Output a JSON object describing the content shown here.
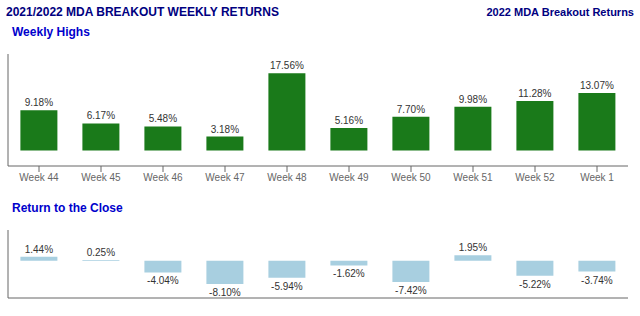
{
  "title": "2021/2022 MDA BREAKOUT WEEKLY RETURNS",
  "subtitle": "2022 MDA Breakout Returns",
  "chart_data": [
    {
      "type": "bar",
      "title": "Weekly Highs",
      "categories": [
        "Week 44",
        "Week 45",
        "Week 46",
        "Week 47",
        "Week 48",
        "Week 49",
        "Week 50",
        "Week 51",
        "Week 52",
        "Week 1"
      ],
      "values": [
        9.18,
        6.17,
        5.48,
        3.18,
        17.56,
        5.16,
        7.7,
        9.98,
        11.28,
        13.07
      ],
      "value_labels": [
        "9.18%",
        "6.17%",
        "5.48%",
        "3.18%",
        "17.56%",
        "5.16%",
        "7.70%",
        "9.98%",
        "11.28%",
        "13.07%"
      ],
      "color": "#1a7a1a",
      "ylim": [
        -3.5,
        21.95
      ],
      "grid": false,
      "data_labels": true,
      "tick_labels": "x"
    },
    {
      "type": "bar",
      "title": "Return to the Close",
      "categories": [
        "Week 44",
        "Week 45",
        "Week 46",
        "Week 47",
        "Week 48",
        "Week 49",
        "Week 50",
        "Week 51",
        "Week 52",
        "Week 1"
      ],
      "values": [
        1.44,
        0.25,
        -4.04,
        -8.1,
        -5.94,
        -1.62,
        -7.42,
        1.95,
        -5.22,
        -3.74
      ],
      "value_labels": [
        "1.44%",
        "0.25%",
        "-4.04%",
        "-8.10%",
        "-5.94%",
        "-1.62%",
        "-7.42%",
        "1.95%",
        "-5.22%",
        "-3.74%"
      ],
      "color": "#a8cfe0",
      "ylim": [
        -12.96,
        10.725
      ],
      "grid": false,
      "data_labels": true,
      "tick_labels": false
    }
  ]
}
